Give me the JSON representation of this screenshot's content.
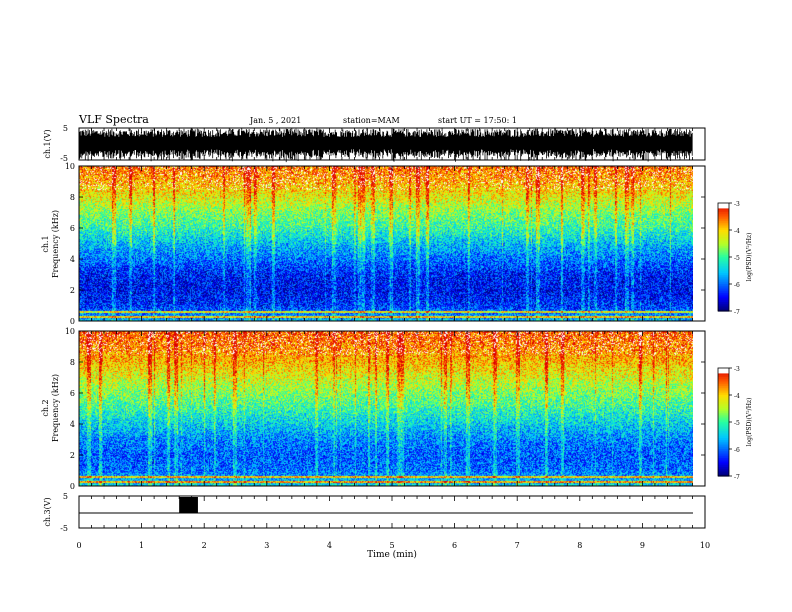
{
  "header": {
    "title": "VLF Spectra",
    "date": "Jan. 5 , 2021",
    "station": "station=MAM",
    "start": "start UT = 17:50: 1"
  },
  "colorbar": {
    "ticks": [
      "-3",
      "-4",
      "-5",
      "-6",
      "-7"
    ],
    "label": "log(PSD)(V²/Hz)",
    "colors": [
      "#00007f",
      "#0000ff",
      "#0080ff",
      "#00ffff",
      "#80ff80",
      "#ffff00",
      "#ff8000",
      "#ff0000",
      "#ffffff"
    ]
  },
  "chart_data": [
    {
      "type": "line",
      "name": "ch1-waveform",
      "ylabel": "ch.1(V)",
      "ylim": [
        -5,
        5
      ],
      "yticks": [
        "5",
        "-5"
      ],
      "xlim": [
        0,
        10
      ],
      "description_values": "dense oscillating signal filling roughly -4 to 4 V across 0 to 9.8 min"
    },
    {
      "type": "heatmap",
      "name": "ch1-spectrogram",
      "ylabel_top": "ch.1",
      "ylabel": "Frequency (kHz)",
      "ylim": [
        0,
        10
      ],
      "yticks": [
        "0",
        "2",
        "4",
        "6",
        "8",
        "10"
      ],
      "xlim": [
        0,
        9.8
      ],
      "zlim": [
        -7,
        -3
      ],
      "profile_kHz": [
        0,
        1,
        2,
        3,
        4,
        5,
        6,
        7,
        8,
        9,
        10
      ],
      "profile_logpsd": [
        -5.6,
        -6.3,
        -6.5,
        -6.4,
        -6.0,
        -5.6,
        -5.1,
        -4.7,
        -4.2,
        -3.8,
        -3.5
      ]
    },
    {
      "type": "heatmap",
      "name": "ch2-spectrogram",
      "ylabel_top": "ch.2",
      "ylabel": "Frequency (kHz)",
      "ylim": [
        0,
        10
      ],
      "yticks": [
        "0",
        "2",
        "4",
        "6",
        "8",
        "10"
      ],
      "xlim": [
        0,
        9.8
      ],
      "zlim": [
        -7,
        -3
      ],
      "profile_kHz": [
        0,
        1,
        2,
        3,
        4,
        5,
        6,
        7,
        8,
        9,
        10
      ],
      "profile_logpsd": [
        -5.4,
        -6.0,
        -6.1,
        -5.9,
        -5.5,
        -5.1,
        -4.7,
        -4.3,
        -3.9,
        -3.6,
        -3.4
      ]
    },
    {
      "type": "line",
      "name": "ch3-waveform",
      "ylabel": "ch.3(V)",
      "ylim": [
        -5,
        5
      ],
      "yticks": [
        "5",
        "-5"
      ],
      "xlim": [
        0,
        10
      ],
      "baseline_V": -2,
      "burst_min": [
        1.6,
        1.9
      ],
      "xlabel": "Time (min)",
      "xticks": [
        "0",
        "1",
        "2",
        "3",
        "4",
        "5",
        "6",
        "7",
        "8",
        "9",
        "10"
      ]
    }
  ]
}
